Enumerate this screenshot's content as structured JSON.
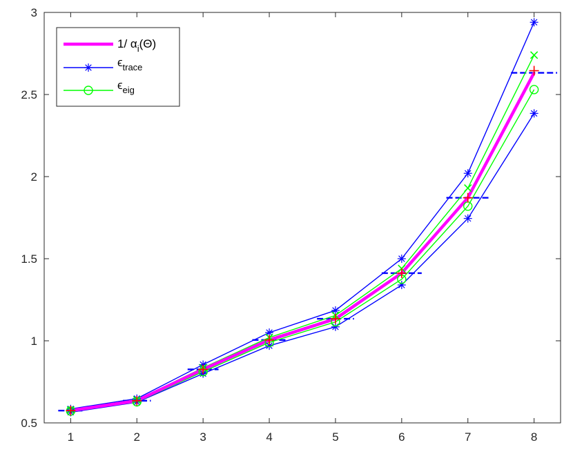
{
  "chart_data": {
    "type": "line",
    "title": "",
    "xlabel": "",
    "ylabel": "",
    "xlim": [
      0.6,
      8.4
    ],
    "ylim": [
      0.5,
      3.0
    ],
    "xticks": [
      1,
      2,
      3,
      4,
      5,
      6,
      7,
      8
    ],
    "yticks": [
      0.5,
      1,
      1.5,
      2,
      2.5,
      3
    ],
    "x_tick_labels": [
      "1",
      "2",
      "3",
      "4",
      "5",
      "6",
      "7",
      "8"
    ],
    "y_tick_labels": [
      "0.5",
      "1",
      "1.5",
      "2",
      "2.5",
      "3"
    ],
    "grid": false,
    "legend_position": "top-left",
    "x": [
      1,
      2,
      3,
      4,
      5,
      6,
      7,
      8
    ],
    "series": [
      {
        "name": "1/ α_i(Θ)",
        "legend_main": "1/  α",
        "legend_sub": "i",
        "legend_tail": "(Θ)",
        "color": "#ff00ff",
        "values": [
          0.575,
          0.635,
          0.826,
          1.005,
          1.134,
          1.412,
          1.871,
          2.632
        ]
      },
      {
        "name": "ε_trace (upper)",
        "legend_main": "ϵ",
        "legend_sub": "trace",
        "color": "#0000ff",
        "marker": "asterisk",
        "values": [
          0.585,
          0.648,
          0.855,
          1.05,
          1.185,
          1.5,
          2.02,
          2.94
        ]
      },
      {
        "name": "ε_trace (lower)",
        "color": "#0000ff",
        "marker": "asterisk",
        "values": [
          0.565,
          0.626,
          0.8,
          0.97,
          1.085,
          1.34,
          1.745,
          2.385
        ]
      },
      {
        "name": "ε_eig (upper)",
        "color": "#00ff00",
        "marker": "x",
        "values": [
          0.578,
          0.64,
          0.835,
          1.02,
          1.155,
          1.44,
          1.93,
          2.74
        ]
      },
      {
        "name": "ε_eig (lower)",
        "legend_main": "ϵ",
        "legend_sub": "eig",
        "color": "#00ff00",
        "marker": "circle",
        "values": [
          0.572,
          0.628,
          0.812,
          0.99,
          1.115,
          1.375,
          1.82,
          2.53
        ]
      }
    ],
    "true_markers": {
      "color": "#ff0000",
      "marker": "plus",
      "values": [
        0.575,
        0.635,
        0.826,
        1.005,
        1.134,
        1.412,
        1.871,
        2.645
      ]
    },
    "reference_levels": {
      "color": "#0000ff",
      "values": [
        0.575,
        0.635,
        0.826,
        1.005,
        1.134,
        1.412,
        1.871,
        2.632
      ]
    }
  }
}
